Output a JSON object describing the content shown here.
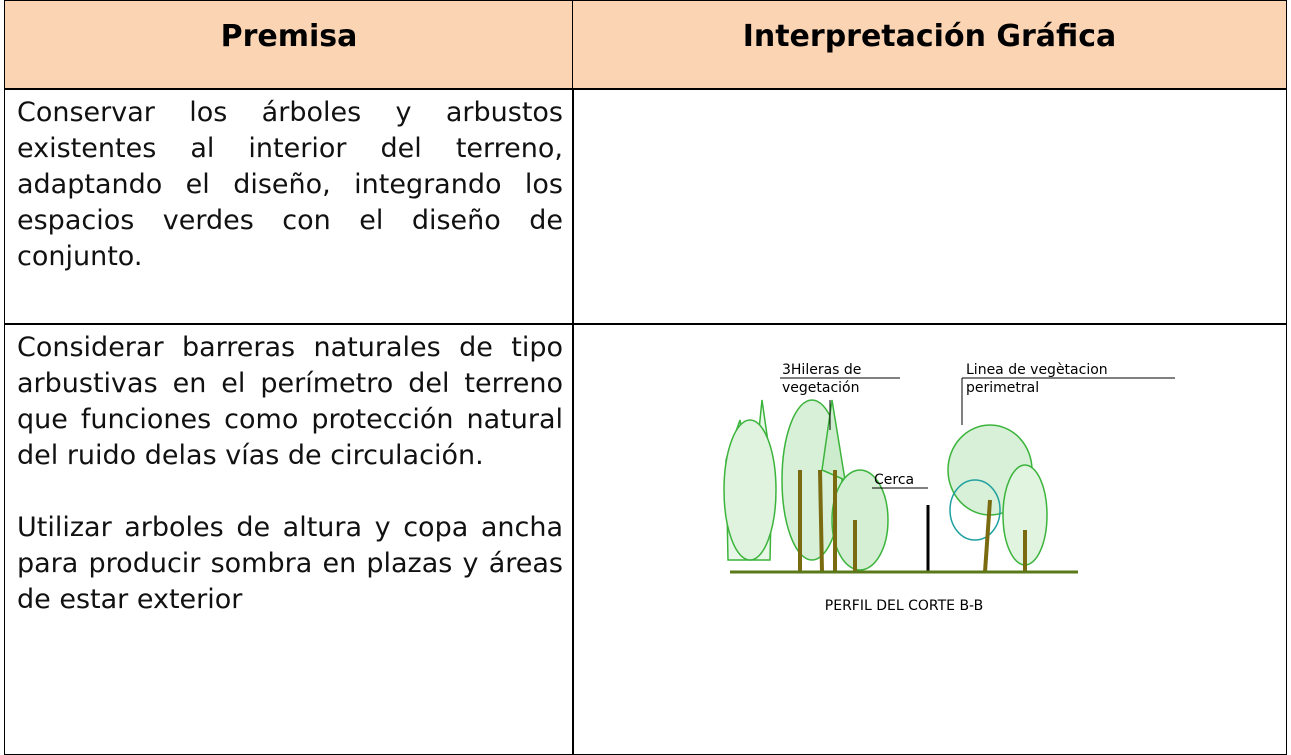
{
  "table": {
    "header": {
      "premise": "Premisa",
      "interpretation": "Interpretación Gráfica"
    },
    "rows": [
      {
        "premise": [
          "Conservar los árboles y arbustos existentes al interior del terreno, adaptando el diseño, integrando los espacios verdes con el diseño de conjunto."
        ]
      },
      {
        "premise": [
          "Considerar barreras naturales de tipo arbustivas en el perímetro del terreno que funciones como protección natural del ruido delas vías de circulación.",
          "Utilizar arboles de altura y copa ancha para producir sombra en plazas y áreas de estar exterior"
        ],
        "drawing": {
          "label_rows": [
            "3Hileras de",
            "vegetación"
          ],
          "label_line": [
            "Linea de vegètacion",
            "perimetral"
          ],
          "label_fence": "Cerca",
          "caption": "PERFIL DEL CORTE B-B"
        }
      }
    ]
  }
}
